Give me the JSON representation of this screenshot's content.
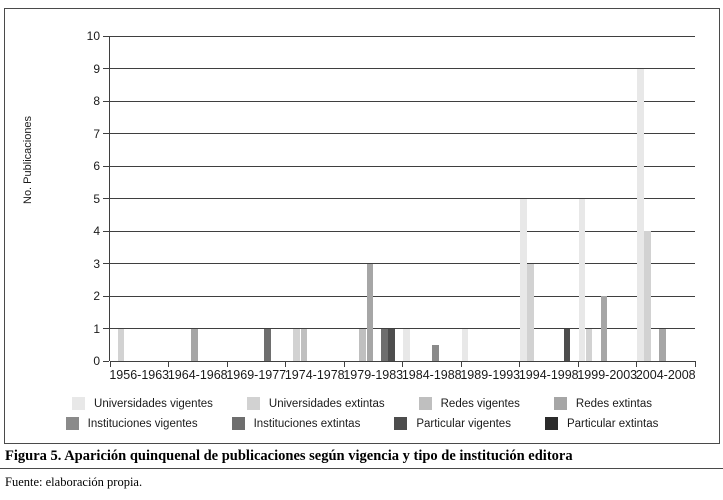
{
  "figure": {
    "caption": "Figura 5. Aparición quinquenal de publicaciones según vigencia y tipo de institución editora",
    "source": "Fuente: elaboración propia."
  },
  "chart_data": {
    "type": "bar",
    "title": "",
    "xlabel": "",
    "ylabel": "No. Publicaciones",
    "ylim": [
      0,
      10
    ],
    "ytick_step": 1,
    "yticks": [
      0,
      1,
      2,
      3,
      4,
      5,
      6,
      7,
      8,
      9,
      10
    ],
    "grid": true,
    "legend_position": "bottom",
    "legend_rows": [
      4,
      4
    ],
    "categories": [
      "1956-1963",
      "1964-1968",
      "1969-1977",
      "1974-1978",
      "1979-1983",
      "1984-1988",
      "1989-1993",
      "1994-1998",
      "1999-2003",
      "2004-2008"
    ],
    "series": [
      {
        "name": "Universidades vigentes",
        "color": "#e8e8e8",
        "values": [
          0,
          0,
          0,
          0,
          0,
          1,
          1,
          5,
          5,
          9
        ]
      },
      {
        "name": "Universidades extintas",
        "color": "#d2d2d2",
        "values": [
          1,
          0,
          0,
          1,
          0,
          0,
          0,
          3,
          1,
          4
        ]
      },
      {
        "name": "Redes vigentes",
        "color": "#bfbfbf",
        "values": [
          0,
          0,
          0,
          1,
          1,
          0,
          0,
          0,
          0,
          0
        ]
      },
      {
        "name": "Redes extintas",
        "color": "#a6a6a6",
        "values": [
          0,
          1,
          0,
          0,
          3,
          0,
          0,
          0,
          2,
          1
        ]
      },
      {
        "name": "Instituciones vigentes",
        "color": "#8a8a8a",
        "values": [
          0,
          0,
          0,
          0,
          0,
          0.5,
          0,
          0,
          0,
          0
        ]
      },
      {
        "name": "Instituciones extintas",
        "color": "#6e6e6e",
        "values": [
          0,
          0,
          1,
          0,
          1,
          0,
          0,
          0,
          0,
          0
        ]
      },
      {
        "name": "Particular vigentes",
        "color": "#4d4d4d",
        "values": [
          0,
          0,
          0,
          0,
          1,
          0,
          0,
          1,
          0,
          0
        ]
      },
      {
        "name": "Particular extintas",
        "color": "#2b2b2b",
        "values": [
          0,
          0,
          0,
          0,
          0,
          0,
          0,
          0,
          0,
          0
        ]
      }
    ]
  }
}
